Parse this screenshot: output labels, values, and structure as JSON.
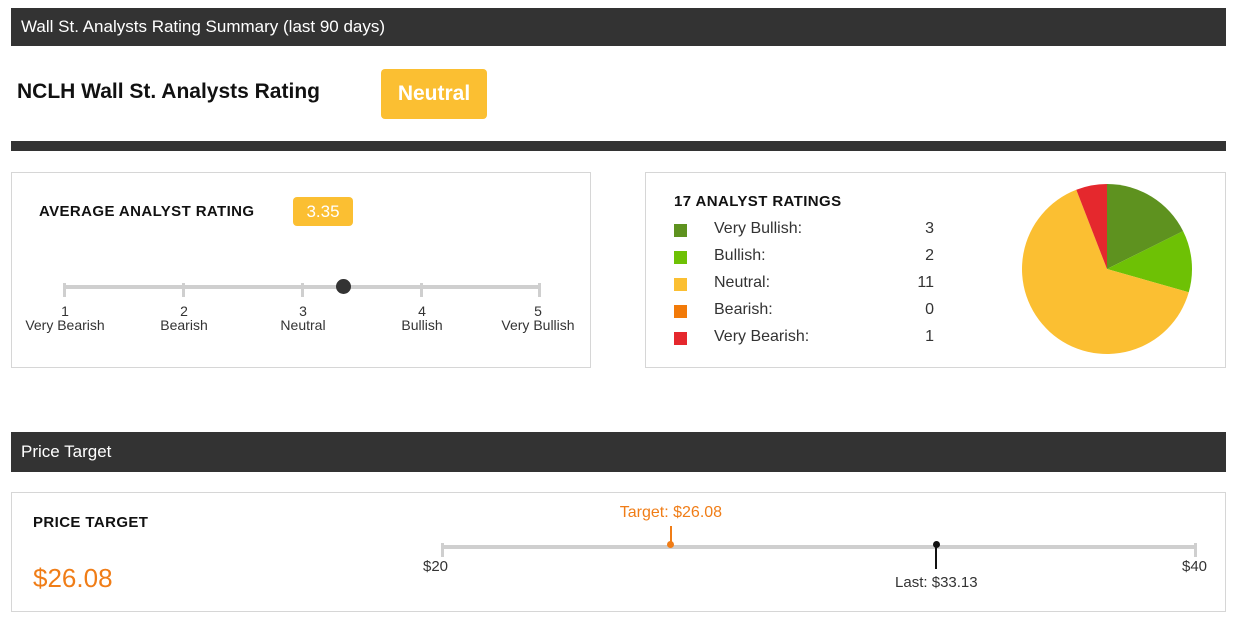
{
  "summary_header": {
    "title": "Wall St. Analysts Rating Summary (last 90 days)"
  },
  "rating": {
    "title": "NCLH Wall St. Analysts Rating",
    "badge": "Neutral",
    "badge_color": "#fbbf32"
  },
  "average_rating": {
    "heading": "AVERAGE ANALYST RATING",
    "value": "3.35",
    "scale": [
      {
        "num": "1",
        "label": "Very Bearish"
      },
      {
        "num": "2",
        "label": "Bearish"
      },
      {
        "num": "3",
        "label": "Neutral"
      },
      {
        "num": "4",
        "label": "Bullish"
      },
      {
        "num": "5",
        "label": "Very Bullish"
      }
    ]
  },
  "distribution": {
    "heading": "17 ANALYST RATINGS",
    "items": [
      {
        "label": "Very Bullish:",
        "count": "3",
        "color": "#5e921f"
      },
      {
        "label": "Bullish:",
        "count": "2",
        "color": "#6ec105"
      },
      {
        "label": "Neutral:",
        "count": "11",
        "color": "#fbbf32"
      },
      {
        "label": "Bearish:",
        "count": "0",
        "color": "#f27a08"
      },
      {
        "label": "Very Bearish:",
        "count": "1",
        "color": "#e5282d"
      }
    ]
  },
  "chart_data": {
    "type": "pie",
    "categories": [
      "Very Bullish",
      "Bullish",
      "Neutral",
      "Bearish",
      "Very Bearish"
    ],
    "values": [
      3,
      2,
      11,
      0,
      1
    ],
    "colors": [
      "#5e921f",
      "#6ec105",
      "#fbbf32",
      "#f27a08",
      "#e5282d"
    ]
  },
  "price_header": {
    "title": "Price Target"
  },
  "price_target": {
    "heading": "PRICE TARGET",
    "value": "$26.08",
    "min_label": "$20",
    "max_label": "$40",
    "target_label": "Target: $26.08",
    "last_label": "Last: $33.13",
    "min": 20,
    "max": 40,
    "target": 26.08,
    "last": 33.13,
    "accent_color": "#f07d17"
  }
}
